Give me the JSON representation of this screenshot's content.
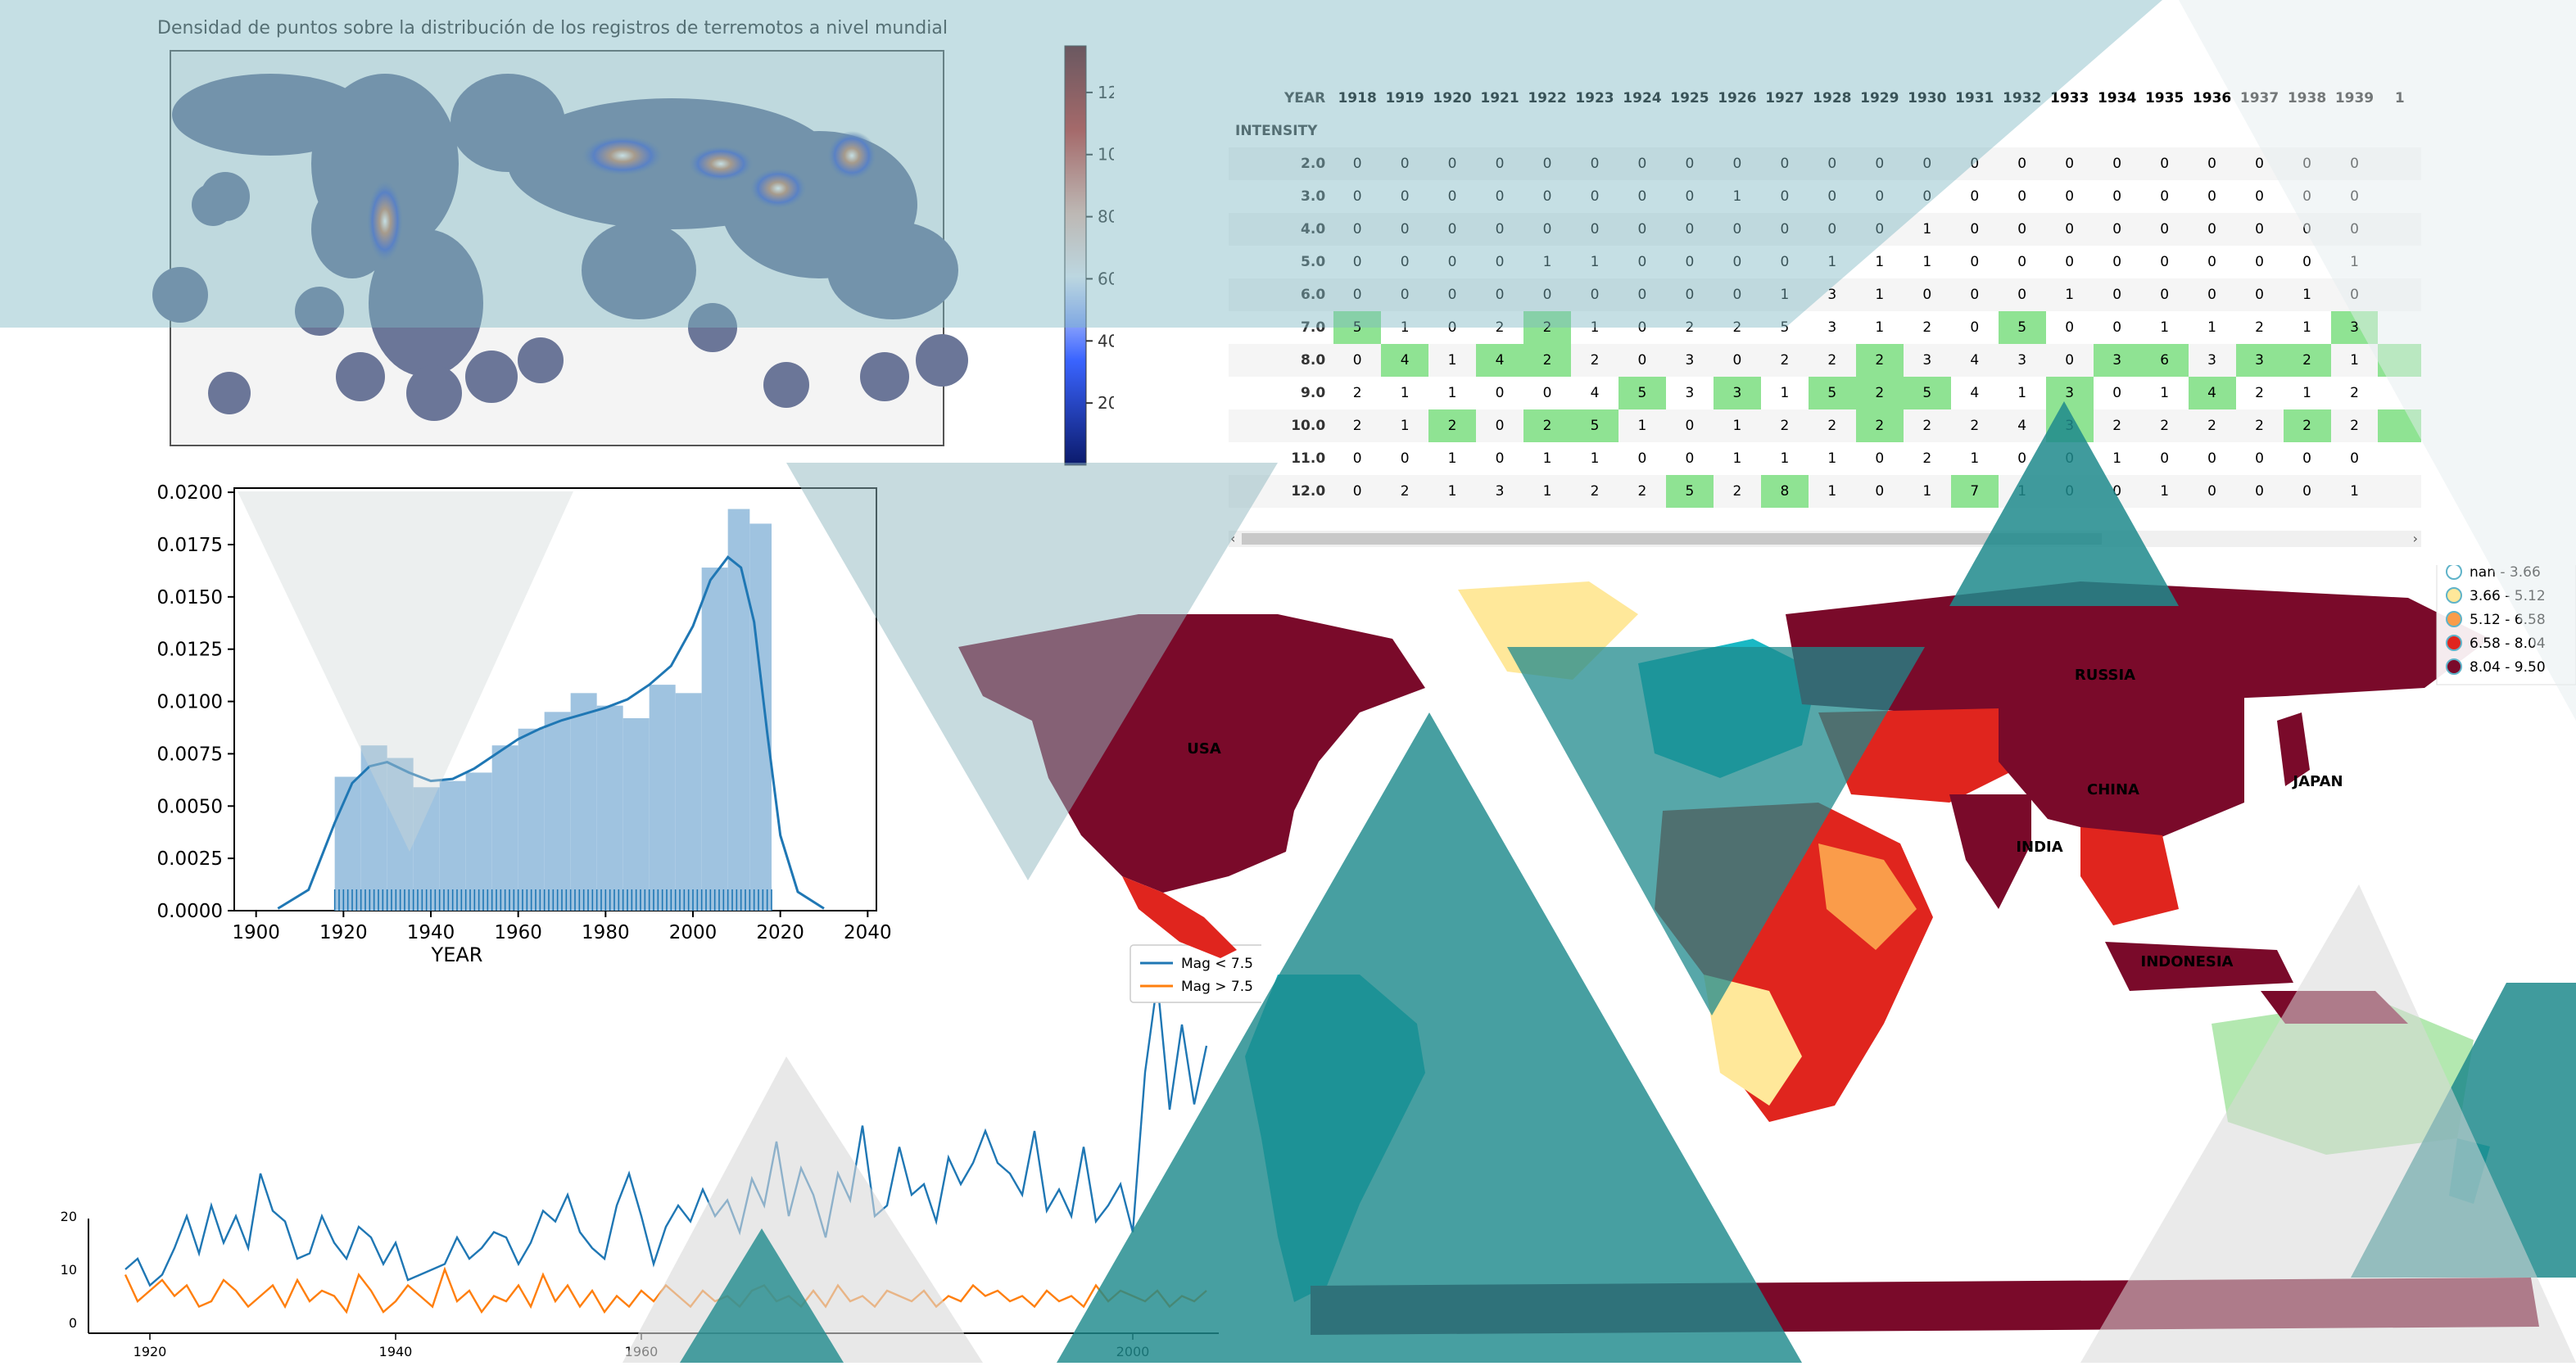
{
  "heatmap_map": {
    "title": "Densidad de puntos sobre la distribución de los registros de terremotos a nivel mundial",
    "colorbar_ticks": [
      20,
      40,
      60,
      80,
      100,
      120
    ]
  },
  "chart_data": [
    {
      "type": "bar",
      "name_hint": "histogram-kde",
      "xlabel": "YEAR",
      "xlim": [
        1895,
        2042
      ],
      "ylim": [
        0,
        0.0202
      ],
      "x_ticks": [
        1900,
        1920,
        1940,
        1960,
        1980,
        2000,
        2020,
        2040
      ],
      "y_ticks": [
        "0.0000",
        "0.0025",
        "0.0050",
        "0.0075",
        "0.0100",
        "0.0125",
        "0.0150",
        "0.0175",
        "0.0200"
      ],
      "bin_edges": [
        1918,
        1924,
        1930,
        1936,
        1942,
        1948,
        1954,
        1960,
        1966,
        1972,
        1978,
        1984,
        1990,
        1996,
        2002,
        2008,
        2013,
        2018
      ],
      "values": [
        0.0064,
        0.0079,
        0.0073,
        0.0059,
        0.0062,
        0.0066,
        0.0079,
        0.0087,
        0.0095,
        0.0104,
        0.0098,
        0.0092,
        0.0108,
        0.0104,
        0.0164,
        0.0192,
        0.0185
      ],
      "kde_x": [
        1905,
        1912,
        1918,
        1922,
        1926,
        1930,
        1935,
        1940,
        1945,
        1950,
        1955,
        1960,
        1965,
        1970,
        1975,
        1980,
        1985,
        1990,
        1995,
        2000,
        2004,
        2008,
        2011,
        2014,
        2017,
        2020,
        2024,
        2030
      ],
      "kde_y": [
        0.0001,
        0.001,
        0.0042,
        0.0061,
        0.0069,
        0.0071,
        0.0066,
        0.0062,
        0.0063,
        0.0068,
        0.0075,
        0.0082,
        0.0087,
        0.0091,
        0.0094,
        0.0097,
        0.0101,
        0.0108,
        0.0117,
        0.0136,
        0.0158,
        0.0169,
        0.0164,
        0.0138,
        0.0085,
        0.0036,
        0.0009,
        0.0001
      ]
    },
    {
      "type": "line",
      "name_hint": "magnitude-lines",
      "xlim": [
        1915,
        2007
      ],
      "ylim": [
        -2,
        70
      ],
      "x_ticks": [
        1920,
        1940,
        1960,
        2000
      ],
      "y_ticks": [
        0,
        10,
        20
      ],
      "series": [
        {
          "name": "Mag < 7.5",
          "color": "#1f77b4",
          "x": [
            1918,
            1919,
            1920,
            1921,
            1922,
            1923,
            1924,
            1925,
            1926,
            1927,
            1928,
            1929,
            1930,
            1931,
            1932,
            1933,
            1934,
            1935,
            1936,
            1937,
            1938,
            1939,
            1940,
            1941,
            1942,
            1943,
            1944,
            1945,
            1946,
            1947,
            1948,
            1949,
            1950,
            1951,
            1952,
            1953,
            1954,
            1955,
            1956,
            1957,
            1958,
            1959,
            1960,
            1961,
            1962,
            1963,
            1964,
            1965,
            1966,
            1967,
            1968,
            1969,
            1970,
            1971,
            1972,
            1973,
            1974,
            1975,
            1976,
            1977,
            1978,
            1979,
            1980,
            1981,
            1982,
            1983,
            1984,
            1985,
            1986,
            1987,
            1988,
            1989,
            1990,
            1991,
            1992,
            1993,
            1994,
            1995,
            1996,
            1997,
            1998,
            1999,
            2000,
            2001,
            2002,
            2003,
            2004,
            2005,
            2006
          ],
          "y": [
            10,
            12,
            7,
            9,
            14,
            20,
            13,
            22,
            15,
            20,
            14,
            28,
            21,
            19,
            12,
            13,
            20,
            15,
            12,
            18,
            16,
            11,
            15,
            8,
            9,
            10,
            11,
            16,
            12,
            14,
            17,
            16,
            11,
            15,
            21,
            19,
            24,
            17,
            14,
            12,
            22,
            28,
            20,
            11,
            18,
            22,
            19,
            25,
            20,
            23,
            17,
            27,
            22,
            34,
            20,
            29,
            24,
            16,
            28,
            23,
            37,
            20,
            22,
            33,
            24,
            26,
            19,
            31,
            26,
            30,
            36,
            30,
            28,
            24,
            36,
            21,
            25,
            20,
            33,
            19,
            22,
            26,
            17,
            47,
            64,
            40,
            56,
            41,
            52
          ]
        },
        {
          "name": "Mag > 7.5",
          "color": "#ff7f0e",
          "x": [
            1918,
            1919,
            1920,
            1921,
            1922,
            1923,
            1924,
            1925,
            1926,
            1927,
            1928,
            1929,
            1930,
            1931,
            1932,
            1933,
            1934,
            1935,
            1936,
            1937,
            1938,
            1939,
            1940,
            1941,
            1942,
            1943,
            1944,
            1945,
            1946,
            1947,
            1948,
            1949,
            1950,
            1951,
            1952,
            1953,
            1954,
            1955,
            1956,
            1957,
            1958,
            1959,
            1960,
            1961,
            1962,
            1963,
            1964,
            1965,
            1966,
            1967,
            1968,
            1969,
            1970,
            1971,
            1972,
            1973,
            1974,
            1975,
            1976,
            1977,
            1978,
            1979,
            1980,
            1981,
            1982,
            1983,
            1984,
            1985,
            1986,
            1987,
            1988,
            1989,
            1990,
            1991,
            1992,
            1993,
            1994,
            1995,
            1996,
            1997,
            1998,
            1999,
            2000,
            2001,
            2002,
            2003,
            2004,
            2005,
            2006
          ],
          "y": [
            9,
            4,
            6,
            8,
            5,
            7,
            3,
            4,
            8,
            6,
            3,
            5,
            7,
            3,
            8,
            4,
            6,
            5,
            2,
            9,
            6,
            2,
            4,
            7,
            5,
            3,
            10,
            4,
            6,
            2,
            5,
            4,
            7,
            3,
            9,
            4,
            7,
            3,
            6,
            2,
            5,
            3,
            6,
            4,
            7,
            5,
            3,
            6,
            4,
            5,
            3,
            6,
            7,
            4,
            5,
            3,
            6,
            3,
            7,
            4,
            5,
            3,
            6,
            5,
            4,
            6,
            3,
            5,
            4,
            7,
            5,
            6,
            4,
            5,
            3,
            6,
            4,
            5,
            3,
            7,
            4,
            6,
            5,
            4,
            6,
            3,
            5,
            4,
            6
          ]
        }
      ]
    },
    {
      "type": "table",
      "name_hint": "intensity-year-table",
      "header_label": "YEAR",
      "index_label": "INTENSITY",
      "columns": [
        "1918",
        "1919",
        "1920",
        "1921",
        "1922",
        "1923",
        "1924",
        "1925",
        "1926",
        "1927",
        "1928",
        "1929",
        "1930",
        "1931",
        "1932",
        "1933",
        "1934",
        "1935",
        "1936",
        "1937",
        "1938",
        "1939",
        "1"
      ],
      "rows": [
        {
          "label": "2.0",
          "cells": [
            "0",
            "0",
            "0",
            "0",
            "0",
            "0",
            "0",
            "0",
            "0",
            "0",
            "0",
            "0",
            "0",
            "0",
            "0",
            "0",
            "0",
            "0",
            "0",
            "0",
            "0",
            "0",
            ""
          ]
        },
        {
          "label": "3.0",
          "cells": [
            "0",
            "0",
            "0",
            "0",
            "0",
            "0",
            "0",
            "0",
            "1",
            "0",
            "0",
            "0",
            "0",
            "0",
            "0",
            "0",
            "0",
            "0",
            "0",
            "0",
            "0",
            "0",
            ""
          ]
        },
        {
          "label": "4.0",
          "cells": [
            "0",
            "0",
            "0",
            "0",
            "0",
            "0",
            "0",
            "0",
            "0",
            "0",
            "0",
            "0",
            "1",
            "0",
            "0",
            "0",
            "0",
            "0",
            "0",
            "0",
            "0",
            "0",
            ""
          ]
        },
        {
          "label": "5.0",
          "cells": [
            "0",
            "0",
            "0",
            "0",
            "1",
            "1",
            "0",
            "0",
            "0",
            "0",
            "1",
            "1",
            "1",
            "0",
            "0",
            "0",
            "0",
            "0",
            "0",
            "0",
            "0",
            "1",
            ""
          ]
        },
        {
          "label": "6.0",
          "cells": [
            "0",
            "0",
            "0",
            "0",
            "0",
            "0",
            "0",
            "0",
            "0",
            "1",
            "3",
            "1",
            "0",
            "0",
            "0",
            "1",
            "0",
            "0",
            "0",
            "0",
            "1",
            "0",
            ""
          ]
        },
        {
          "label": "7.0",
          "cells": [
            "5",
            "1",
            "0",
            "2",
            "2",
            "1",
            "0",
            "2",
            "2",
            "5",
            "3",
            "1",
            "2",
            "0",
            "5",
            "0",
            "0",
            "1",
            "1",
            "2",
            "1",
            "3",
            ""
          ]
        },
        {
          "label": "8.0",
          "cells": [
            "0",
            "4",
            "1",
            "4",
            "2",
            "2",
            "0",
            "3",
            "0",
            "2",
            "2",
            "2",
            "3",
            "4",
            "3",
            "0",
            "3",
            "6",
            "3",
            "3",
            "2",
            "1",
            ""
          ]
        },
        {
          "label": "9.0",
          "cells": [
            "2",
            "1",
            "1",
            "0",
            "0",
            "4",
            "5",
            "3",
            "3",
            "1",
            "5",
            "2",
            "5",
            "4",
            "1",
            "3",
            "0",
            "1",
            "4",
            "2",
            "1",
            "2",
            ""
          ]
        },
        {
          "label": "10.0",
          "cells": [
            "2",
            "1",
            "2",
            "0",
            "2",
            "5",
            "1",
            "0",
            "1",
            "2",
            "2",
            "2",
            "2",
            "2",
            "4",
            "3",
            "2",
            "2",
            "2",
            "2",
            "2",
            "2",
            ""
          ]
        },
        {
          "label": "11.0",
          "cells": [
            "0",
            "0",
            "1",
            "0",
            "1",
            "1",
            "0",
            "0",
            "1",
            "1",
            "1",
            "0",
            "2",
            "1",
            "0",
            "0",
            "1",
            "0",
            "0",
            "0",
            "0",
            "0",
            ""
          ]
        },
        {
          "label": "12.0",
          "cells": [
            "0",
            "2",
            "1",
            "3",
            "1",
            "2",
            "2",
            "5",
            "2",
            "8",
            "1",
            "0",
            "1",
            "7",
            "1",
            "0",
            "0",
            "1",
            "0",
            "0",
            "0",
            "1",
            ""
          ]
        }
      ],
      "highlight": [
        [
          5,
          0
        ],
        [
          5,
          4
        ],
        [
          5,
          14
        ],
        [
          5,
          21
        ],
        [
          6,
          1
        ],
        [
          6,
          3
        ],
        [
          6,
          4
        ],
        [
          6,
          11
        ],
        [
          6,
          16
        ],
        [
          6,
          17
        ],
        [
          6,
          19
        ],
        [
          6,
          20
        ],
        [
          6,
          22
        ],
        [
          7,
          6
        ],
        [
          7,
          8
        ],
        [
          7,
          10
        ],
        [
          7,
          11
        ],
        [
          7,
          12
        ],
        [
          7,
          15
        ],
        [
          7,
          18
        ],
        [
          8,
          2
        ],
        [
          8,
          4
        ],
        [
          8,
          5
        ],
        [
          8,
          11
        ],
        [
          8,
          15
        ],
        [
          8,
          20
        ],
        [
          8,
          22
        ],
        [
          10,
          7
        ],
        [
          10,
          9
        ],
        [
          10,
          13
        ]
      ]
    }
  ],
  "choropleth": {
    "legend": [
      "nan - 3.66",
      "3.66 - 5.12",
      "5.12 - 6.58",
      "6.58 - 8.04",
      "8.04 - 9.50"
    ],
    "legend_colors": [
      "#ffffff",
      "#ffe89a",
      "#fa9c4a",
      "#e0251e",
      "#7a0a2a"
    ],
    "country_labels": [
      "USA",
      "RUSSIA",
      "CHINA",
      "JAPAN",
      "INDIA",
      "INDONESIA"
    ]
  }
}
